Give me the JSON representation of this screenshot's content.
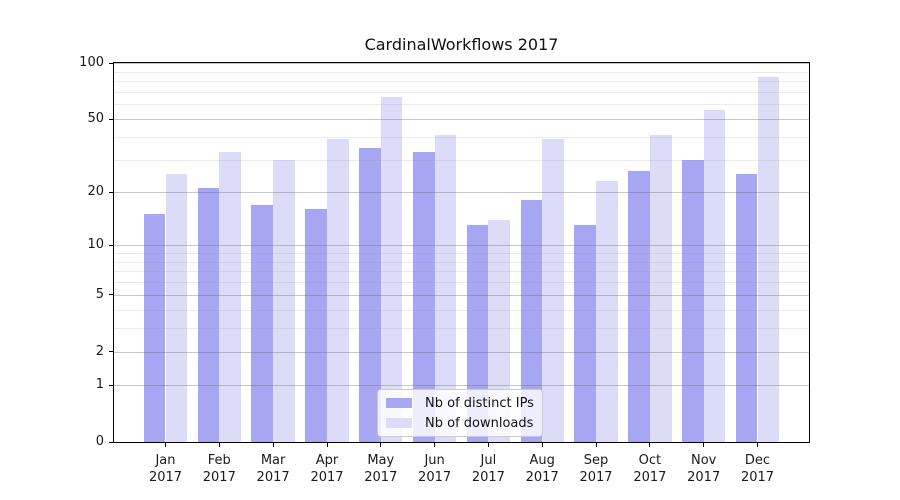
{
  "figure": {
    "background": "#ffffff"
  },
  "chart_data": {
    "type": "bar",
    "title": "CardinalWorkflows 2017",
    "categories": [
      "Jan",
      "Feb",
      "Mar",
      "Apr",
      "May",
      "Jun",
      "Jul",
      "Aug",
      "Sep",
      "Oct",
      "Nov",
      "Dec"
    ],
    "x_tick_second_line": "2017",
    "series": [
      {
        "name": "Nb of distinct IPs",
        "color": "#a6a6f2",
        "values": [
          15,
          21,
          17,
          16,
          35,
          33,
          13,
          18,
          13,
          26,
          30,
          25
        ]
      },
      {
        "name": "Nb of downloads",
        "color": "#dcdcf9",
        "values": [
          25,
          33,
          30,
          39,
          66,
          41,
          14,
          39,
          23,
          41,
          56,
          84
        ]
      }
    ],
    "xlabel": "",
    "ylabel": "",
    "ylim": [
      0,
      100
    ],
    "yscale": "log1p",
    "y_major_ticks": [
      0,
      1,
      2,
      5,
      10,
      20,
      50,
      100
    ],
    "y_minor_ticks": [
      3,
      4,
      6,
      7,
      8,
      9,
      30,
      40,
      60,
      70,
      80,
      90
    ],
    "grid": true,
    "legend_position": "lower center"
  },
  "colors": {
    "axis": "#000000",
    "grid_major": "#6e6e6e",
    "grid_minor": "#969696",
    "text": "#1a1a1a",
    "legend_border": "#cbcbcb"
  }
}
